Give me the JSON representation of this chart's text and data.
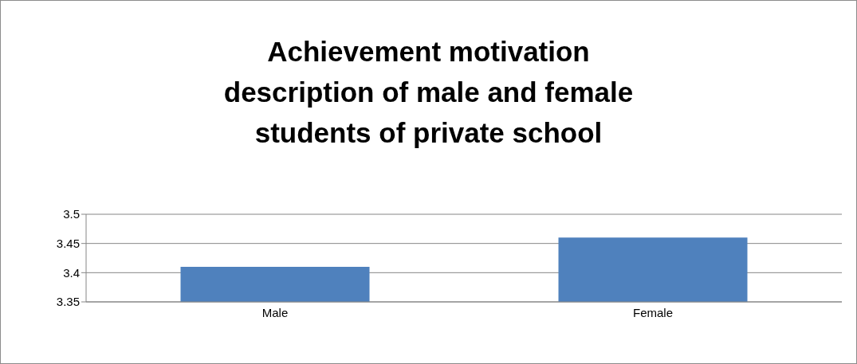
{
  "chart_data": {
    "type": "bar",
    "title": "Achievement motivation description of male and female students of private school",
    "categories": [
      "Male",
      "Female"
    ],
    "values": [
      3.41,
      3.46
    ],
    "color": "#4f81bd",
    "ylim": [
      3.35,
      3.5
    ],
    "yticks": [
      3.35,
      3.4,
      3.45,
      3.5
    ],
    "grid": "y"
  }
}
